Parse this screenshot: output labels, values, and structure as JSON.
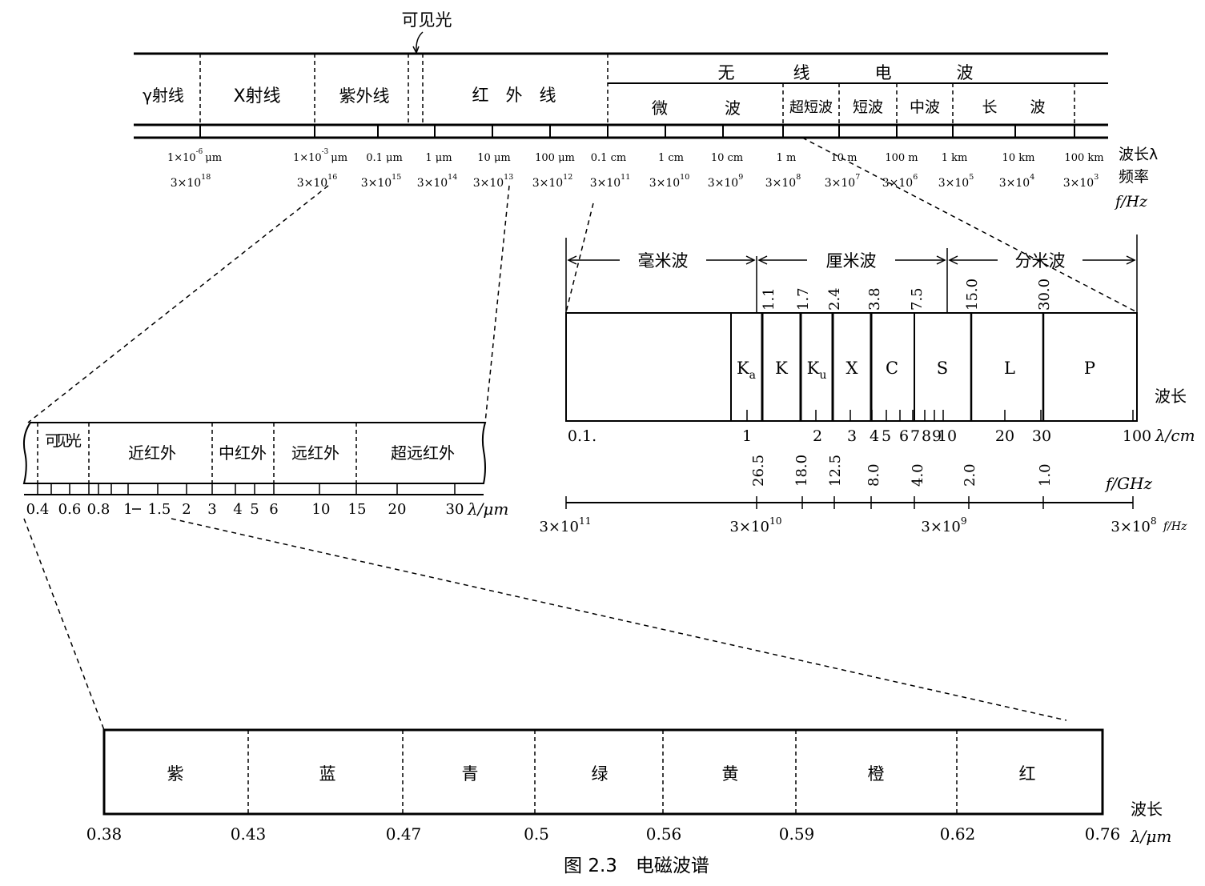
{
  "top": {
    "visible_light_label": "可见光",
    "bands": [
      "γ射线",
      "X射线",
      "紫外线",
      "红　外　线"
    ],
    "radio": {
      "title": [
        "无",
        "线",
        "电",
        "波"
      ],
      "subbands": [
        "微",
        "波",
        "超短波",
        "短波",
        "中波",
        "长",
        "波"
      ]
    },
    "wavelength_ticks": [
      {
        "base": "1×10",
        "exp": "-6",
        "unit": "μm"
      },
      {
        "base": "1×10",
        "exp": "-3",
        "unit": "μm"
      },
      {
        "base": "0.1 μm",
        "exp": "",
        "unit": ""
      },
      {
        "base": "1 μm",
        "exp": "",
        "unit": ""
      },
      {
        "base": "10 μm",
        "exp": "",
        "unit": ""
      },
      {
        "base": "100 μm",
        "exp": "",
        "unit": ""
      },
      {
        "base": "0.1 cm",
        "exp": "",
        "unit": ""
      },
      {
        "base": "1 cm",
        "exp": "",
        "unit": ""
      },
      {
        "base": "10 cm",
        "exp": "",
        "unit": ""
      },
      {
        "base": "1 m",
        "exp": "",
        "unit": ""
      },
      {
        "base": "10 m",
        "exp": "",
        "unit": ""
      },
      {
        "base": "100 m",
        "exp": "",
        "unit": ""
      },
      {
        "base": "1 km",
        "exp": "",
        "unit": ""
      },
      {
        "base": "10 km",
        "exp": "",
        "unit": ""
      },
      {
        "base": "100 km",
        "exp": "",
        "unit": ""
      }
    ],
    "frequency_ticks": [
      {
        "base": "3×10",
        "exp": "18"
      },
      {
        "base": "3×10",
        "exp": "16"
      },
      {
        "base": "3×10",
        "exp": "15"
      },
      {
        "base": "3×10",
        "exp": "14"
      },
      {
        "base": "3×10",
        "exp": "13"
      },
      {
        "base": "3×10",
        "exp": "12"
      },
      {
        "base": "3×10",
        "exp": "11"
      },
      {
        "base": "3×10",
        "exp": "10"
      },
      {
        "base": "3×10",
        "exp": "9"
      },
      {
        "base": "3×10",
        "exp": "8"
      },
      {
        "base": "3×10",
        "exp": "7"
      },
      {
        "base": "3×10",
        "exp": "6"
      },
      {
        "base": "3×10",
        "exp": "5"
      },
      {
        "base": "3×10",
        "exp": "4"
      },
      {
        "base": "3×10",
        "exp": "3"
      }
    ],
    "axis_labels": {
      "wavelength": "波长λ",
      "frequency": "频率",
      "freq_unit": "f/Hz"
    }
  },
  "infrared": {
    "bands": [
      "可见光",
      "近红外",
      "中红外",
      "远红外",
      "超远红外"
    ],
    "ticks": [
      "0.4",
      "0.6",
      "0.8",
      "1",
      "1.5",
      "2",
      "3",
      "4",
      "5",
      "6",
      "10",
      "15",
      "20",
      "30"
    ],
    "unit": "λ/μm"
  },
  "microwave": {
    "regions": [
      "毫米波",
      "厘米波",
      "分米波"
    ],
    "bands": [
      {
        "letter": "K",
        "sub": "a"
      },
      {
        "letter": "K",
        "sub": ""
      },
      {
        "letter": "K",
        "sub": "u"
      },
      {
        "letter": "X",
        "sub": ""
      },
      {
        "letter": "C",
        "sub": ""
      },
      {
        "letter": "S",
        "sub": ""
      },
      {
        "letter": "L",
        "sub": ""
      },
      {
        "letter": "P",
        "sub": ""
      }
    ],
    "boundary_cm": [
      "1.1",
      "1.7",
      "2.4",
      "3.8",
      "7.5",
      "15.0",
      "30.0"
    ],
    "boundary_ghz": [
      "26.5",
      "18.0",
      "12.5",
      "8.0",
      "4.0",
      "2.0",
      "1.0"
    ],
    "wavelength_ticks": [
      "0.1.",
      "1",
      "2",
      "3",
      "4",
      "5",
      "6",
      "7",
      "8",
      "9",
      "10",
      "20",
      "30",
      "100"
    ],
    "wavelength_unit": "λ/cm",
    "wavelength_label": "波长",
    "freq_unit": "f/GHz",
    "freq_ticks": [
      {
        "base": "3×10",
        "exp": "11"
      },
      {
        "base": "3×10",
        "exp": "10"
      },
      {
        "base": "3×10",
        "exp": "9"
      },
      {
        "base": "3×10",
        "exp": "8"
      }
    ],
    "freq_hz_unit": "f/Hz"
  },
  "visible": {
    "colors": [
      "紫",
      "蓝",
      "青",
      "绿",
      "黄",
      "橙",
      "红"
    ],
    "ticks": [
      "0.38",
      "0.43",
      "0.47",
      "0.5",
      "0.56",
      "0.59",
      "0.62",
      "0.76"
    ],
    "wavelength_label": "波长",
    "unit": "λ/μm"
  },
  "caption": "图 2.3　电磁波谱"
}
